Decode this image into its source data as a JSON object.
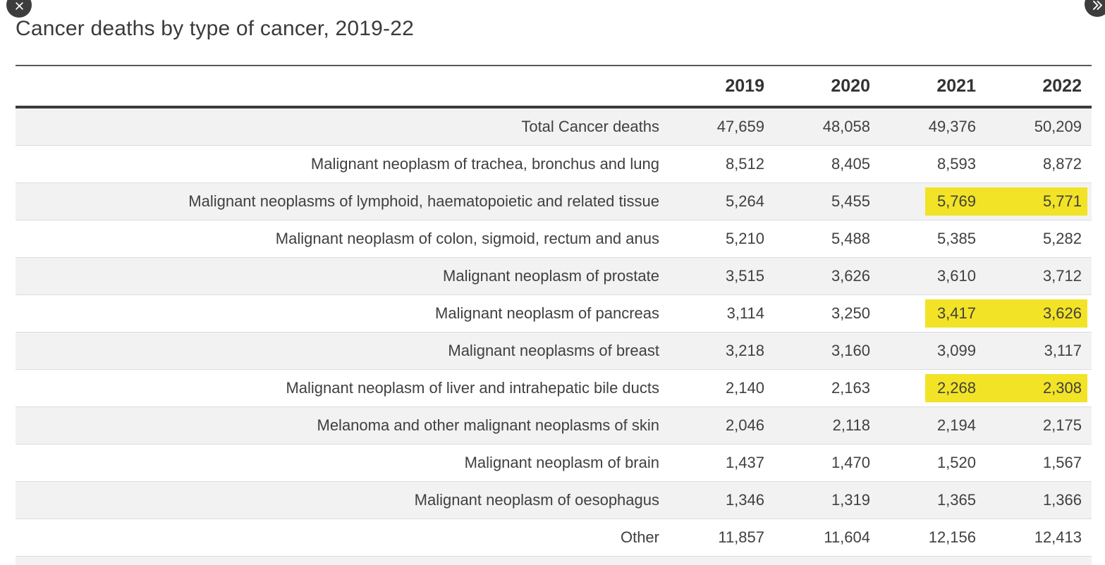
{
  "page": {
    "title": "Cancer deaths by type of cancer, 2019-22"
  },
  "controls": {
    "close_button": "close",
    "next_button": "next"
  },
  "colors": {
    "highlight_yellow": "#f2e326",
    "row_stripe": "#f2f2f2",
    "button_background": "#3d3d3d",
    "text": "#404040"
  },
  "table": {
    "columns": [
      "2019",
      "2020",
      "2021",
      "2022"
    ],
    "highlighted_columns": [
      "2021",
      "2022"
    ],
    "rows": [
      {
        "label": "Total Cancer deaths",
        "values": [
          "47,659",
          "48,058",
          "49,376",
          "50,209"
        ],
        "highlight": false
      },
      {
        "label": "Malignant neoplasm of trachea, bronchus and lung",
        "values": [
          "8,512",
          "8,405",
          "8,593",
          "8,872"
        ],
        "highlight": false
      },
      {
        "label": "Malignant neoplasms of lymphoid, haematopoietic and related tissue",
        "values": [
          "5,264",
          "5,455",
          "5,769",
          "5,771"
        ],
        "highlight": true
      },
      {
        "label": "Malignant neoplasm of colon, sigmoid, rectum and anus",
        "values": [
          "5,210",
          "5,488",
          "5,385",
          "5,282"
        ],
        "highlight": false
      },
      {
        "label": "Malignant neoplasm of prostate",
        "values": [
          "3,515",
          "3,626",
          "3,610",
          "3,712"
        ],
        "highlight": false
      },
      {
        "label": "Malignant neoplasm of pancreas",
        "values": [
          "3,114",
          "3,250",
          "3,417",
          "3,626"
        ],
        "highlight": true
      },
      {
        "label": "Malignant neoplasms of breast",
        "values": [
          "3,218",
          "3,160",
          "3,099",
          "3,117"
        ],
        "highlight": false
      },
      {
        "label": "Malignant neoplasm of liver and intrahepatic bile ducts",
        "values": [
          "2,140",
          "2,163",
          "2,268",
          "2,308"
        ],
        "highlight": true
      },
      {
        "label": "Melanoma and other malignant neoplasms of skin",
        "values": [
          "2,046",
          "2,118",
          "2,194",
          "2,175"
        ],
        "highlight": false
      },
      {
        "label": "Malignant neoplasm of brain",
        "values": [
          "1,437",
          "1,470",
          "1,520",
          "1,567"
        ],
        "highlight": false
      },
      {
        "label": "Malignant neoplasm of oesophagus",
        "values": [
          "1,346",
          "1,319",
          "1,365",
          "1,366"
        ],
        "highlight": false
      },
      {
        "label": "Other",
        "values": [
          "11,857",
          "11,604",
          "12,156",
          "12,413"
        ],
        "highlight": false
      }
    ]
  }
}
